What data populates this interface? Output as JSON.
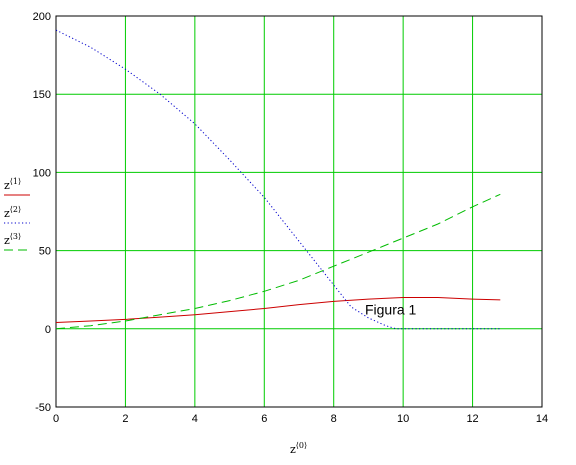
{
  "chart_data": {
    "type": "line",
    "title": "",
    "annotation": "Figura 1",
    "xlabel": {
      "base": "z",
      "sup": "⟨0⟩"
    },
    "xlim": [
      0,
      14
    ],
    "ylim": [
      -50,
      200
    ],
    "xticks": [
      "0",
      "2",
      "4",
      "6",
      "8",
      "10",
      "12",
      "14"
    ],
    "yticks": [
      "-50",
      "0",
      "50",
      "100",
      "150",
      "200"
    ],
    "grid": true,
    "grid_color": "#00cc00",
    "series": [
      {
        "name_base": "z",
        "name_sup": "⟨1⟩",
        "color": "#cc0000",
        "dash": "solid",
        "x": [
          0,
          1,
          2,
          3,
          4,
          5,
          6,
          7,
          8,
          9,
          10,
          11,
          12,
          12.8
        ],
        "y": [
          4,
          5,
          6,
          7.5,
          9,
          11,
          13,
          15.5,
          17.5,
          19,
          20,
          20,
          19,
          18.5
        ]
      },
      {
        "name_base": "z",
        "name_sup": "⟨2⟩",
        "color": "#0000cc",
        "dash": "dotted",
        "x": [
          0,
          1,
          2,
          3,
          4,
          5,
          6,
          7,
          8,
          8.5,
          9,
          9.5,
          9.8,
          10,
          11,
          12,
          12.8
        ],
        "y": [
          191,
          180,
          166,
          150,
          131,
          108,
          84,
          56,
          28,
          14,
          7,
          2,
          0,
          0,
          0,
          0,
          0
        ]
      },
      {
        "name_base": "z",
        "name_sup": "⟨3⟩",
        "color": "#00bb00",
        "dash": "dashed",
        "x": [
          0,
          1,
          2,
          3,
          4,
          5,
          6,
          7,
          8,
          9,
          10,
          11,
          12,
          12.8
        ],
        "y": [
          0,
          2,
          5,
          9,
          13,
          18,
          24,
          31,
          40,
          49,
          58,
          67,
          78,
          86
        ]
      }
    ]
  }
}
